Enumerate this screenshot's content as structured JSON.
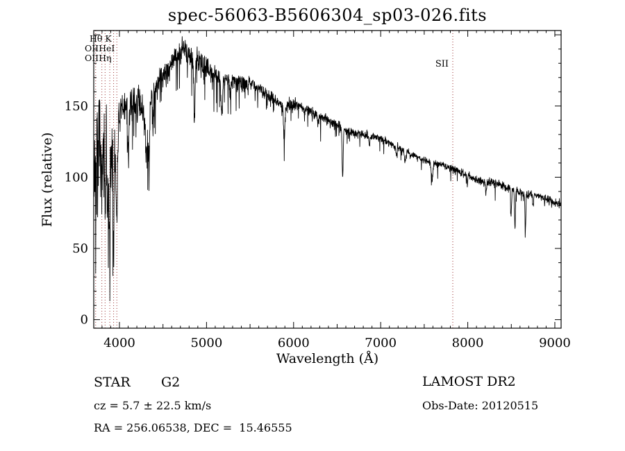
{
  "title": "spec-56063-B5606304_sp03-026.fits",
  "chart_data": {
    "type": "line",
    "title": "spec-56063-B5606304_sp03-026.fits",
    "xlabel": "Wavelength (Å)",
    "ylabel": "Flux (relative)",
    "xlim": [
      3705,
      9072
    ],
    "ylim": [
      -6,
      203
    ],
    "x_major_ticks": [
      4000,
      5000,
      6000,
      7000,
      8000,
      9000
    ],
    "x_tick_labels": [
      "4000",
      "5000",
      "6000",
      "7000",
      "8000",
      "9000"
    ],
    "x_minor_step": 100,
    "x_medium_step": 500,
    "y_major_ticks": [
      0,
      50,
      100,
      150,
      200
    ],
    "y_tick_labels": [
      "0",
      "50",
      "100",
      "150"
    ],
    "y_minor_step": 10,
    "grid": false,
    "legend": null,
    "line_color": "#000000",
    "marker_line_color": "#9b3030",
    "noise_seed": 7,
    "sample_step": 2.5,
    "spectral_line_markers": [
      {
        "label": "OII",
        "wavelength": 3727
      },
      {
        "label": "Hθ",
        "wavelength": 3798
      },
      {
        "label": "Hη",
        "wavelength": 3835
      },
      {
        "label": "HeI",
        "wavelength": 3889
      },
      {
        "label": "K",
        "wavelength": 3933
      },
      {
        "label": "H",
        "wavelength": 3970
      },
      {
        "label": "SII",
        "wavelength": 7828
      }
    ],
    "display_labels": {
      "top_left_rows": [
        "Hθ K",
        "OIIHeI",
        "OIIHη"
      ],
      "sii": "SII"
    },
    "continuum": [
      [
        3705,
        115
      ],
      [
        3740,
        120
      ],
      [
        3780,
        122
      ],
      [
        3830,
        118
      ],
      [
        3880,
        112
      ],
      [
        3930,
        112
      ],
      [
        3960,
        118
      ],
      [
        3985,
        135
      ],
      [
        4000,
        142
      ],
      [
        4050,
        150
      ],
      [
        4100,
        149
      ],
      [
        4150,
        152
      ],
      [
        4200,
        151
      ],
      [
        4260,
        148
      ],
      [
        4300,
        142
      ],
      [
        4330,
        144
      ],
      [
        4360,
        152
      ],
      [
        4400,
        160
      ],
      [
        4450,
        169
      ],
      [
        4500,
        172
      ],
      [
        4550,
        174
      ],
      [
        4600,
        180
      ],
      [
        4650,
        185
      ],
      [
        4700,
        188
      ],
      [
        4750,
        190
      ],
      [
        4800,
        187
      ],
      [
        4850,
        182
      ],
      [
        4900,
        181
      ],
      [
        4950,
        179
      ],
      [
        5000,
        177
      ],
      [
        5050,
        175
      ],
      [
        5100,
        173
      ],
      [
        5150,
        170
      ],
      [
        5200,
        170
      ],
      [
        5300,
        168
      ],
      [
        5400,
        166
      ],
      [
        5500,
        166
      ],
      [
        5600,
        163
      ],
      [
        5700,
        158
      ],
      [
        5800,
        153
      ],
      [
        5900,
        149
      ],
      [
        5960,
        151
      ],
      [
        6000,
        152
      ],
      [
        6100,
        149
      ],
      [
        6200,
        146
      ],
      [
        6300,
        143
      ],
      [
        6400,
        140
      ],
      [
        6500,
        137
      ],
      [
        6600,
        133
      ],
      [
        6700,
        131
      ],
      [
        6800,
        130
      ],
      [
        6900,
        129
      ],
      [
        7000,
        127
      ],
      [
        7100,
        124
      ],
      [
        7200,
        121
      ],
      [
        7300,
        118
      ],
      [
        7400,
        115
      ],
      [
        7500,
        112
      ],
      [
        7600,
        110
      ],
      [
        7700,
        109
      ],
      [
        7800,
        106
      ],
      [
        7900,
        104
      ],
      [
        8000,
        101
      ],
      [
        8100,
        98
      ],
      [
        8200,
        97
      ],
      [
        8300,
        96
      ],
      [
        8400,
        94
      ],
      [
        8500,
        92
      ],
      [
        8600,
        89
      ],
      [
        8700,
        88
      ],
      [
        8800,
        87
      ],
      [
        8900,
        85
      ],
      [
        9000,
        82
      ],
      [
        9072,
        81
      ]
    ],
    "noise_segments": [
      [
        3705,
        3960,
        36
      ],
      [
        3960,
        4400,
        12
      ],
      [
        4400,
        5000,
        9
      ],
      [
        5000,
        5500,
        6
      ],
      [
        5500,
        6000,
        4.5
      ],
      [
        6000,
        6600,
        3.5
      ],
      [
        6600,
        7200,
        2.8
      ],
      [
        7200,
        7900,
        2.4
      ],
      [
        7900,
        9072,
        3.0
      ]
    ],
    "down_spikes": [
      [
        3705,
        3960,
        0.18,
        40
      ],
      [
        3960,
        4500,
        0.1,
        32
      ],
      [
        4500,
        5500,
        0.08,
        28
      ],
      [
        5500,
        6500,
        0.06,
        16
      ],
      [
        6500,
        7500,
        0.05,
        9
      ],
      [
        7500,
        9072,
        0.05,
        11
      ]
    ],
    "absorption_lines": [
      [
        3727,
        30,
        5
      ],
      [
        3750,
        25,
        6
      ],
      [
        3798,
        40,
        6
      ],
      [
        3835,
        45,
        6
      ],
      [
        3868,
        30,
        5
      ],
      [
        3889,
        45,
        6
      ],
      [
        3933,
        55,
        7
      ],
      [
        3969,
        55,
        7
      ],
      [
        4101,
        32,
        8
      ],
      [
        4310,
        26,
        13
      ],
      [
        4340,
        30,
        7
      ],
      [
        4383,
        15,
        5
      ],
      [
        4861,
        46,
        6
      ],
      [
        5175,
        26,
        9
      ],
      [
        5270,
        12,
        6
      ],
      [
        5893,
        22,
        7
      ],
      [
        6280,
        6,
        6
      ],
      [
        6563,
        36,
        6
      ],
      [
        6870,
        8,
        7
      ],
      [
        7180,
        6,
        6
      ],
      [
        7280,
        8,
        7
      ],
      [
        7590,
        12,
        9
      ],
      [
        7995,
        6,
        5
      ],
      [
        8210,
        7,
        6
      ],
      [
        8498,
        18,
        5
      ],
      [
        8542,
        27,
        5
      ],
      [
        8662,
        24,
        5
      ],
      [
        8750,
        6,
        5
      ]
    ]
  },
  "annotations": {
    "object_class": "STAR",
    "subclass": "G2",
    "velocity": "cz = 5.7 ± 22.5 km/s",
    "coordinates": "RA = 256.06538, DEC =  15.46555",
    "survey": "LAMOST DR2",
    "obs_date": "Obs-Date: 20120515"
  }
}
